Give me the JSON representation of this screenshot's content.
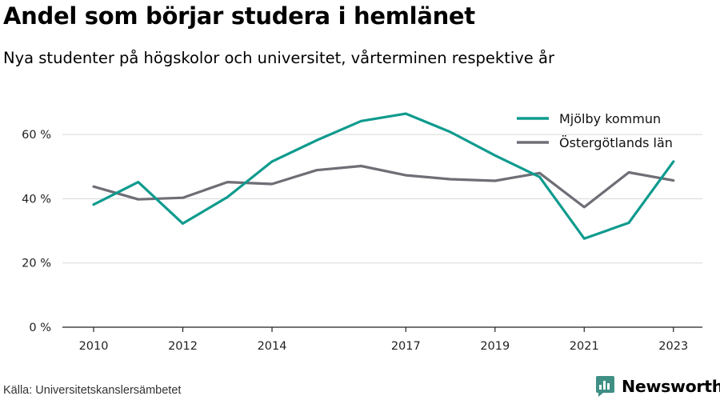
{
  "title": "Andel som börjar studera i hemlänet",
  "subtitle": "Nya studenter på högskolor och universitet, vårterminen respektive år",
  "source": "Källa: Universitetskanslersämbetet",
  "brand": {
    "name": "Newsworthy",
    "icon": "newsworthy-logo-icon",
    "color": "#3f8f85"
  },
  "chart_data": {
    "type": "line",
    "x": [
      2010,
      2011,
      2012,
      2013,
      2014,
      2015,
      2016,
      2017,
      2018,
      2019,
      2020,
      2021,
      2022,
      2023
    ],
    "x_tick_labels": [
      "2010",
      "2012",
      "2014",
      "2017",
      "2019",
      "2021",
      "2023"
    ],
    "y_tick_labels": [
      "0 %",
      "20 %",
      "40 %",
      "60 %"
    ],
    "y_ticks": [
      0,
      20,
      40,
      60
    ],
    "ylim": [
      0,
      72
    ],
    "xlim": [
      2009.3,
      2023.65
    ],
    "grid": true,
    "legend_position": "top-right",
    "series": [
      {
        "name": "Mjölby kommun",
        "color": "#0f9b8e",
        "values": [
          38.2,
          45.2,
          32.3,
          40.5,
          51.6,
          58.2,
          64.2,
          66.5,
          60.8,
          53.5,
          46.8,
          27.6,
          32.5,
          51.6
        ]
      },
      {
        "name": "Östergötlands län",
        "color": "#6e6e76",
        "values": [
          43.8,
          39.8,
          40.3,
          45.2,
          44.6,
          48.9,
          50.2,
          47.3,
          46.1,
          45.6,
          48.0,
          37.4,
          48.2,
          45.7
        ]
      }
    ]
  }
}
